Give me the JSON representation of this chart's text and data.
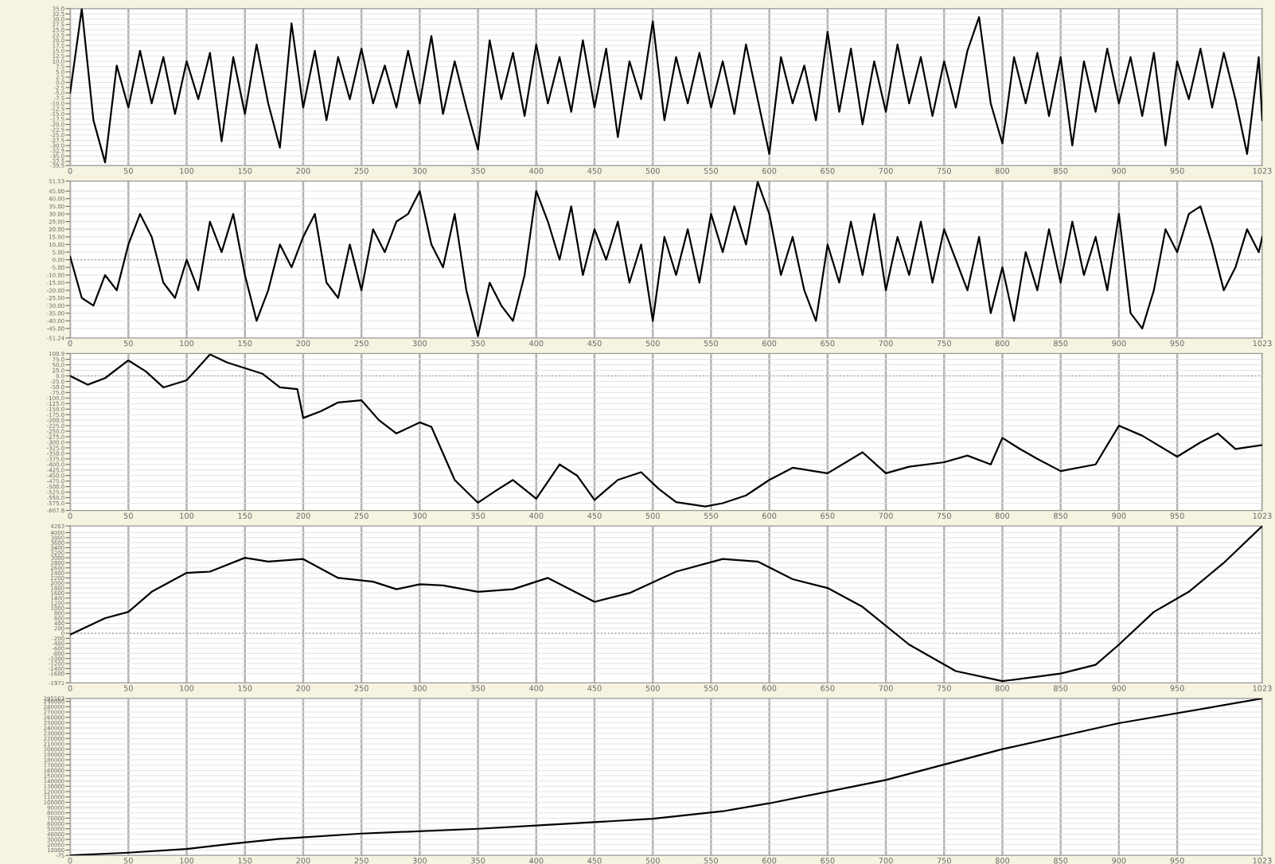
{
  "chart_data": [
    {
      "type": "line",
      "color": "#000000",
      "grid": true,
      "xlim": [
        0,
        1023
      ],
      "ylim": [
        -39.5,
        35.0
      ],
      "xticks": [
        0,
        50,
        100,
        150,
        200,
        250,
        300,
        350,
        400,
        450,
        500,
        550,
        600,
        650,
        700,
        750,
        800,
        850,
        900,
        950,
        1023
      ],
      "yticks": [
        {
          "value": 35,
          "label": "35.0"
        },
        {
          "value": 32.5,
          "label": "32.5"
        },
        {
          "value": 30,
          "label": "30.0"
        },
        {
          "value": 27.5,
          "label": "27.5"
        },
        {
          "value": 25,
          "label": "25.0"
        },
        {
          "value": 22.5,
          "label": "22.5"
        },
        {
          "value": 20,
          "label": "20.0"
        },
        {
          "value": 17.5,
          "label": "17.5"
        },
        {
          "value": 15,
          "label": "15.0"
        },
        {
          "value": 12.5,
          "label": "12.5"
        },
        {
          "value": 10,
          "label": "10.0"
        },
        {
          "value": 7.5,
          "label": "7.5"
        },
        {
          "value": 5,
          "label": "5.0"
        },
        {
          "value": 2.5,
          "label": "2.5"
        },
        {
          "value": 0,
          "label": "0.0"
        },
        {
          "value": -2.5,
          "label": "-2.5"
        },
        {
          "value": -5,
          "label": "-5.0"
        },
        {
          "value": -7.5,
          "label": "-7.5"
        },
        {
          "value": -10,
          "label": "-10.0"
        },
        {
          "value": -12.5,
          "label": "-12.5"
        },
        {
          "value": -15,
          "label": "-15.0"
        },
        {
          "value": -17.5,
          "label": "-17.5"
        },
        {
          "value": -20,
          "label": "-20.0"
        },
        {
          "value": -22.5,
          "label": "-22.5"
        },
        {
          "value": -25,
          "label": "-25.0"
        },
        {
          "value": -27.5,
          "label": "-27.5"
        },
        {
          "value": -30,
          "label": "-30.0"
        },
        {
          "value": -32.5,
          "label": "-32.5"
        },
        {
          "value": -35,
          "label": "-35.0"
        },
        {
          "value": -37.5,
          "label": "-37.5"
        },
        {
          "value": -39.5,
          "label": "-39.5"
        }
      ],
      "x": [
        0,
        10,
        20,
        30,
        40,
        50,
        60,
        70,
        80,
        90,
        100,
        110,
        120,
        130,
        140,
        150,
        160,
        170,
        180,
        190,
        200,
        210,
        220,
        230,
        240,
        250,
        260,
        270,
        280,
        290,
        300,
        310,
        320,
        330,
        340,
        350,
        360,
        370,
        380,
        390,
        400,
        410,
        420,
        430,
        440,
        450,
        460,
        470,
        480,
        490,
        500,
        510,
        520,
        530,
        540,
        550,
        560,
        570,
        580,
        590,
        600,
        610,
        620,
        630,
        640,
        650,
        660,
        670,
        680,
        690,
        700,
        710,
        720,
        730,
        740,
        750,
        760,
        770,
        780,
        790,
        800,
        810,
        820,
        830,
        840,
        850,
        860,
        870,
        880,
        890,
        900,
        910,
        920,
        930,
        940,
        950,
        960,
        970,
        980,
        990,
        1000,
        1010,
        1020,
        1023
      ],
      "values": [
        -5,
        35,
        -18,
        -38,
        8,
        -12,
        15,
        -10,
        12,
        -15,
        10,
        -8,
        14,
        -28,
        12,
        -15,
        18,
        -10,
        -31,
        28,
        -12,
        15,
        -18,
        12,
        -8,
        16,
        -10,
        8,
        -12,
        15,
        -10,
        22,
        -15,
        10,
        -12,
        -32,
        20,
        -8,
        14,
        -16,
        18,
        -10,
        12,
        -14,
        20,
        -12,
        16,
        -26,
        10,
        -8,
        29,
        -18,
        12,
        -10,
        14,
        -12,
        10,
        -15,
        18,
        -8,
        -34,
        12,
        -10,
        8,
        -18,
        24,
        -14,
        16,
        -20,
        10,
        -14,
        18,
        -10,
        12,
        -16,
        10,
        -12,
        15,
        31,
        -10,
        -29,
        12,
        -10,
        14,
        -16,
        12,
        -30,
        10,
        -14,
        16,
        -10,
        12,
        -16,
        14,
        -30,
        10,
        -8,
        16,
        -12,
        14,
        -8,
        -34,
        12,
        -18
      ]
    },
    {
      "type": "line",
      "color": "#000000",
      "grid": true,
      "xlim": [
        0,
        1023
      ],
      "ylim": [
        -51.24,
        51.53
      ],
      "xticks": [
        0,
        50,
        100,
        150,
        200,
        250,
        300,
        350,
        400,
        450,
        500,
        550,
        600,
        650,
        700,
        750,
        800,
        850,
        900,
        950,
        1023
      ],
      "yticks": [
        51.53,
        {
          "value": 45,
          "label": "45.00"
        },
        {
          "value": 40,
          "label": "40.00"
        },
        {
          "value": 35,
          "label": "35.00"
        },
        {
          "value": 30,
          "label": "30.00"
        },
        {
          "value": 25,
          "label": "25.00"
        },
        {
          "value": 20,
          "label": "20.00"
        },
        {
          "value": 15,
          "label": "15.00"
        },
        {
          "value": 10,
          "label": "10.00"
        },
        {
          "value": 5,
          "label": "5.00"
        },
        {
          "value": 0,
          "label": "0.00"
        },
        {
          "value": -5,
          "label": "-5.00"
        },
        {
          "value": -10,
          "label": "-10.00"
        },
        {
          "value": -15,
          "label": "-15.00"
        },
        {
          "value": -20,
          "label": "-20.00"
        },
        {
          "value": -25,
          "label": "-25.00"
        },
        {
          "value": -30,
          "label": "-30.00"
        },
        {
          "value": -35,
          "label": "-35.00"
        },
        {
          "value": -40,
          "label": "-40.00"
        },
        {
          "value": -45,
          "label": "-45.00"
        },
        -51.24
      ],
      "ref_lines": [
        {
          "axis": "y",
          "value": 0,
          "color": "#a0a0a0",
          "line_style": "dotted"
        }
      ],
      "x": [
        0,
        10,
        20,
        30,
        40,
        50,
        60,
        70,
        80,
        90,
        100,
        110,
        120,
        130,
        140,
        150,
        160,
        170,
        180,
        190,
        200,
        210,
        220,
        230,
        240,
        250,
        260,
        270,
        280,
        290,
        300,
        310,
        320,
        330,
        340,
        350,
        360,
        370,
        380,
        390,
        400,
        410,
        420,
        430,
        440,
        450,
        460,
        470,
        480,
        490,
        500,
        510,
        520,
        530,
        540,
        550,
        560,
        570,
        580,
        590,
        600,
        610,
        620,
        630,
        640,
        650,
        660,
        670,
        680,
        690,
        700,
        710,
        720,
        730,
        740,
        750,
        760,
        770,
        780,
        790,
        800,
        810,
        820,
        830,
        840,
        850,
        860,
        870,
        880,
        890,
        900,
        910,
        920,
        930,
        940,
        950,
        960,
        970,
        980,
        990,
        1000,
        1010,
        1020,
        1023
      ],
      "values": [
        2,
        -25,
        -30,
        -10,
        -20,
        10,
        30,
        15,
        -15,
        -25,
        0,
        -20,
        25,
        5,
        30,
        -10,
        -40,
        -20,
        10,
        -5,
        15,
        30,
        -15,
        -25,
        10,
        -20,
        20,
        5,
        25,
        30,
        45,
        10,
        -5,
        30,
        -20,
        -50,
        -15,
        -30,
        -40,
        -10,
        45,
        25,
        0,
        35,
        -10,
        20,
        0,
        25,
        -15,
        10,
        -40,
        15,
        -10,
        20,
        -15,
        30,
        5,
        35,
        10,
        51,
        30,
        -10,
        15,
        -20,
        -40,
        10,
        -15,
        25,
        -10,
        30,
        -20,
        15,
        -10,
        25,
        -15,
        20,
        0,
        -20,
        15,
        -35,
        -5,
        -40,
        5,
        -20,
        20,
        -15,
        25,
        -10,
        15,
        -20,
        30,
        -35,
        -45,
        -20,
        20,
        5,
        30,
        35,
        10,
        -20,
        -5,
        20,
        5,
        15
      ]
    },
    {
      "type": "line",
      "color": "#000000",
      "grid": true,
      "xlim": [
        0,
        1023
      ],
      "ylim": [
        -607.8,
        100.9
      ],
      "xticks": [
        0,
        50,
        100,
        150,
        200,
        250,
        300,
        350,
        400,
        450,
        500,
        550,
        600,
        650,
        700,
        750,
        800,
        850,
        900,
        950,
        1023
      ],
      "yticks": [
        100.9,
        {
          "value": 75,
          "label": "75.0"
        },
        {
          "value": 50,
          "label": "50.0"
        },
        {
          "value": 25,
          "label": "25.0"
        },
        {
          "value": 0,
          "label": "0.0"
        },
        {
          "value": -25,
          "label": "-25.0"
        },
        {
          "value": -50,
          "label": "-50.0"
        },
        {
          "value": -75,
          "label": "-75.0"
        },
        {
          "value": -100,
          "label": "-100.0"
        },
        {
          "value": -125,
          "label": "-125.0"
        },
        {
          "value": -150,
          "label": "-150.0"
        },
        {
          "value": -175,
          "label": "-175.0"
        },
        {
          "value": -200,
          "label": "-200.0"
        },
        {
          "value": -225,
          "label": "-225.0"
        },
        {
          "value": -250,
          "label": "-250.0"
        },
        {
          "value": -275,
          "label": "-275.0"
        },
        {
          "value": -300,
          "label": "-300.0"
        },
        {
          "value": -325,
          "label": "-325.0"
        },
        {
          "value": -350,
          "label": "-350.0"
        },
        {
          "value": -375,
          "label": "-375.0"
        },
        {
          "value": -400,
          "label": "-400.0"
        },
        {
          "value": -425,
          "label": "-425.0"
        },
        {
          "value": -450,
          "label": "-450.0"
        },
        {
          "value": -475,
          "label": "-475.0"
        },
        {
          "value": -500,
          "label": "-500.0"
        },
        {
          "value": -525,
          "label": "-525.0"
        },
        {
          "value": -550,
          "label": "-550.0"
        },
        {
          "value": -575,
          "label": "-575.0"
        },
        -607.8
      ],
      "ref_lines": [
        {
          "axis": "y",
          "value": 0,
          "color": "#a0a0a0",
          "line_style": "dotted"
        }
      ],
      "x": [
        0,
        15,
        30,
        50,
        65,
        80,
        100,
        120,
        135,
        150,
        165,
        180,
        195,
        200,
        215,
        230,
        250,
        265,
        280,
        300,
        310,
        330,
        350,
        365,
        380,
        400,
        420,
        435,
        450,
        470,
        490,
        505,
        520,
        545,
        560,
        580,
        600,
        620,
        650,
        680,
        700,
        720,
        750,
        770,
        790,
        800,
        815,
        830,
        850,
        880,
        900,
        920,
        950,
        970,
        985,
        1000,
        1023
      ],
      "values": [
        0,
        -40,
        -10,
        70,
        20,
        -52,
        -20,
        97,
        60,
        35,
        10,
        -52,
        -60,
        -190,
        -160,
        -120,
        -110,
        -200,
        -260,
        -210,
        -230,
        -470,
        -573,
        -520,
        -470,
        -555,
        -400,
        -450,
        -560,
        -470,
        -435,
        -510,
        -570,
        -590,
        -575,
        -540,
        -470,
        -415,
        -440,
        -345,
        -440,
        -410,
        -390,
        -360,
        -400,
        -280,
        -330,
        -375,
        -430,
        -400,
        -225,
        -270,
        -365,
        -300,
        -260,
        -330,
        -312
      ]
    },
    {
      "type": "line",
      "color": "#000000",
      "grid": true,
      "xlim": [
        0,
        1023
      ],
      "ylim": [
        -1971,
        4263
      ],
      "xticks": [
        0,
        50,
        100,
        150,
        200,
        250,
        300,
        350,
        400,
        450,
        500,
        550,
        600,
        650,
        700,
        750,
        800,
        850,
        900,
        950,
        1023
      ],
      "yticks": [
        4263,
        4000,
        3800,
        3600,
        3400,
        3200,
        3000,
        2800,
        2600,
        2400,
        2200,
        2000,
        1800,
        1600,
        1400,
        1200,
        1000,
        800,
        600,
        400,
        200,
        0,
        -200,
        -400,
        -600,
        -800,
        -1000,
        -1200,
        -1400,
        -1600,
        -1971
      ],
      "ref_lines": [
        {
          "axis": "y",
          "value": 0,
          "color": "#a0a0a0",
          "line_style": "dotted"
        }
      ],
      "x": [
        0,
        30,
        50,
        70,
        100,
        120,
        150,
        170,
        200,
        230,
        260,
        280,
        300,
        320,
        350,
        380,
        410,
        450,
        480,
        520,
        560,
        590,
        620,
        650,
        680,
        720,
        760,
        800,
        850,
        880,
        900,
        930,
        960,
        990,
        1023
      ],
      "values": [
        -50,
        600,
        850,
        1650,
        2400,
        2450,
        3000,
        2850,
        2950,
        2200,
        2050,
        1750,
        1950,
        1900,
        1650,
        1750,
        2200,
        1250,
        1600,
        2450,
        2950,
        2850,
        2150,
        1800,
        1050,
        -450,
        -1500,
        -1900,
        -1600,
        -1250,
        -450,
        850,
        1650,
        2800,
        4263
      ]
    },
    {
      "type": "line",
      "color": "#000000",
      "grid": true,
      "xlim": [
        0,
        1023
      ],
      "ylim": [
        -75,
        295563
      ],
      "xticks": [
        0,
        50,
        100,
        150,
        200,
        250,
        300,
        350,
        400,
        450,
        500,
        550,
        600,
        650,
        700,
        750,
        800,
        850,
        900,
        950,
        1023
      ],
      "yticks": [
        295563,
        290000,
        280000,
        270000,
        260000,
        250000,
        240000,
        230000,
        220000,
        210000,
        200000,
        190000,
        180000,
        170000,
        160000,
        150000,
        140000,
        130000,
        120000,
        110000,
        100000,
        90000,
        80000,
        70000,
        60000,
        50000,
        40000,
        30000,
        20000,
        10000,
        -75
      ],
      "x": [
        0,
        50,
        100,
        140,
        180,
        250,
        350,
        400,
        500,
        560,
        600,
        700,
        800,
        900,
        1023
      ],
      "values": [
        0,
        5000,
        12000,
        22000,
        31000,
        41000,
        50000,
        56000,
        69000,
        83000,
        98000,
        142000,
        200000,
        249000,
        295563
      ]
    }
  ]
}
